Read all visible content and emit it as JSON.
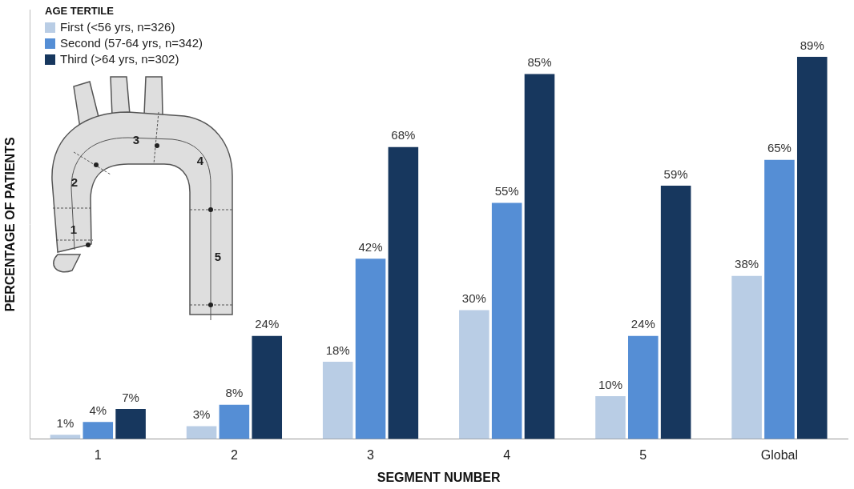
{
  "chart_data": {
    "type": "bar",
    "x_label": "SEGMENT NUMBER",
    "y_label": "PERCENTAGE OF PATIENTS",
    "legend_title": "AGE TERTILE",
    "categories": [
      "1",
      "2",
      "3",
      "4",
      "5",
      "Global"
    ],
    "series": [
      {
        "name": "First (<56 yrs, n=326)",
        "color": "#b9cde5",
        "values": [
          1,
          3,
          18,
          30,
          10,
          38
        ],
        "value_labels": [
          "1%",
          "3%",
          "18%",
          "30%",
          "10%",
          "38%"
        ]
      },
      {
        "name": "Second (57-64 yrs, n=342)",
        "color": "#558ed5",
        "values": [
          4,
          8,
          42,
          55,
          24,
          65
        ],
        "value_labels": [
          "4%",
          "8%",
          "42%",
          "55%",
          "24%",
          "65%"
        ]
      },
      {
        "name": "Third (>64 yrs, n=302)",
        "color": "#17375e",
        "values": [
          7,
          24,
          68,
          85,
          59,
          89
        ],
        "value_labels": [
          "7%",
          "24%",
          "68%",
          "85%",
          "59%",
          "89%"
        ]
      }
    ],
    "ylim": [
      0,
      100
    ],
    "grid": false,
    "legend": "upper left",
    "data_labels": true,
    "tick_labels": "x"
  }
}
